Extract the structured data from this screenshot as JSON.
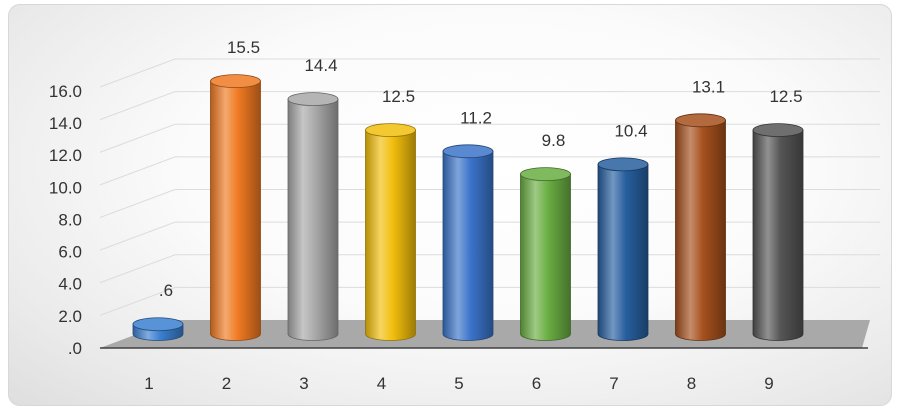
{
  "chart_data": {
    "type": "bar",
    "style": "3d-cylinder",
    "title": "",
    "xlabel": "",
    "ylabel": "",
    "categories": [
      "1",
      "2",
      "3",
      "4",
      "5",
      "6",
      "7",
      "8",
      "9"
    ],
    "values": [
      0.6,
      15.5,
      14.4,
      12.5,
      11.2,
      9.8,
      10.4,
      13.1,
      12.5
    ],
    "data_labels": [
      ".6",
      "15.5",
      "14.4",
      "12.5",
      "11.2",
      "9.8",
      "10.4",
      "13.1",
      "12.5"
    ],
    "y_ticks": [
      ".0",
      "2.0",
      "4.0",
      "6.0",
      "8.0",
      "10.0",
      "12.0",
      "14.0",
      "16.0"
    ],
    "ylim": [
      0,
      16
    ],
    "grid": true,
    "legend": "none",
    "bar_colors": [
      "#3a7fd0",
      "#f07a22",
      "#a8a8a8",
      "#f2be0c",
      "#3b74c9",
      "#6aae43",
      "#275f9f",
      "#a5501c",
      "#555555"
    ],
    "floor_color": "#a9a9a9",
    "grid_color": "#dcdcdc"
  }
}
